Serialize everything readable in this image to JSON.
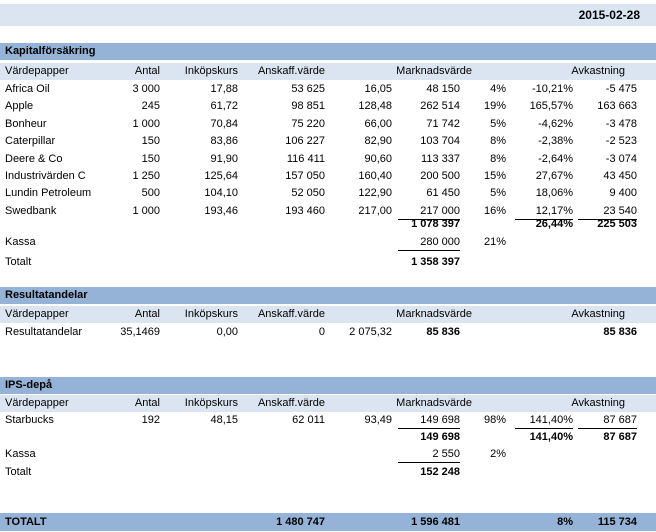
{
  "date": "2015-02-28",
  "kapital": {
    "title": "Kapitalförsäkring",
    "headers": {
      "vardepapper": "Värdepapper",
      "antal": "Antal",
      "inkopskurs": "Inköpskurs",
      "anskaff": "Anskaff.värde",
      "marknadsvarde": "Marknadsvärde",
      "avkastning": "Avkastning"
    },
    "rows": [
      {
        "name": "Africa Oil",
        "antal": "3 000",
        "inkop": "17,88",
        "anskaff": "53 625",
        "kurs": "16,05",
        "mv": "48 150",
        "andel": "4%",
        "avk_pct": "-10,21%",
        "avk_kr": "-5 475"
      },
      {
        "name": "Apple",
        "antal": "245",
        "inkop": "61,72",
        "anskaff": "98 851",
        "kurs": "128,48",
        "mv": "262 514",
        "andel": "19%",
        "avk_pct": "165,57%",
        "avk_kr": "163 663"
      },
      {
        "name": "Bonheur",
        "antal": "1 000",
        "inkop": "70,84",
        "anskaff": "75 220",
        "kurs": "66,00",
        "mv": "71 742",
        "andel": "5%",
        "avk_pct": "-4,62%",
        "avk_kr": "-3 478"
      },
      {
        "name": "Caterpillar",
        "antal": "150",
        "inkop": "83,86",
        "anskaff": "106 227",
        "kurs": "82,90",
        "mv": "103 704",
        "andel": "8%",
        "avk_pct": "-2,38%",
        "avk_kr": "-2 523"
      },
      {
        "name": "Deere & Co",
        "antal": "150",
        "inkop": "91,90",
        "anskaff": "116 411",
        "kurs": "90,60",
        "mv": "113 337",
        "andel": "8%",
        "avk_pct": "-2,64%",
        "avk_kr": "-3 074"
      },
      {
        "name": "Industrivärden C",
        "antal": "1 250",
        "inkop": "125,64",
        "anskaff": "157 050",
        "kurs": "160,40",
        "mv": "200 500",
        "andel": "15%",
        "avk_pct": "27,67%",
        "avk_kr": "43 450"
      },
      {
        "name": "Lundin Petroleum",
        "antal": "500",
        "inkop": "104,10",
        "anskaff": "52 050",
        "kurs": "122,90",
        "mv": "61 450",
        "andel": "5%",
        "avk_pct": "18,06%",
        "avk_kr": "9 400"
      },
      {
        "name": "Swedbank",
        "antal": "1 000",
        "inkop": "193,46",
        "anskaff": "193 460",
        "kurs": "217,00",
        "mv": "217 000",
        "andel": "16%",
        "avk_pct": "12,17%",
        "avk_kr": "23 540"
      }
    ],
    "subtotal_mv": "1 078 397",
    "subtotal_avk_pct": "26,44%",
    "subtotal_avk_kr": "225 503",
    "kassa_label": "Kassa",
    "kassa_mv": "280 000",
    "kassa_andel": "21%",
    "totalt_label": "Totalt",
    "totalt_mv": "1 358 397"
  },
  "resultat": {
    "title": "Resultatandelar",
    "headers": {
      "vardepapper": "Värdepapper",
      "antal": "Antal",
      "inkopskurs": "Inköpskurs",
      "anskaff": "Anskaff.värde",
      "marknadsvarde": "Marknadsvärde",
      "avkastning": "Avkastning"
    },
    "row": {
      "name": "Resultatandelar",
      "antal": "35,1469",
      "inkop": "0,00",
      "anskaff": "0",
      "kurs": "2 075,32",
      "mv": "85 836",
      "avk_kr": "85 836"
    }
  },
  "ips": {
    "title": "IPS-depå",
    "headers": {
      "vardepapper": "Värdepapper",
      "antal": "Antal",
      "inkopskurs": "Inköpskurs",
      "anskaff": "Anskaff.värde",
      "marknadsvarde": "Marknadsvärde",
      "avkastning": "Avkastning"
    },
    "row": {
      "name": "Starbucks",
      "antal": "192",
      "inkop": "48,15",
      "anskaff": "62 011",
      "kurs": "93,49",
      "mv": "149 698",
      "andel": "98%",
      "avk_pct": "141,40%",
      "avk_kr": "87 687"
    },
    "subtotal_mv": "149 698",
    "subtotal_avk_pct": "141,40%",
    "subtotal_avk_kr": "87 687",
    "kassa_label": "Kassa",
    "kassa_mv": "2 550",
    "kassa_andel": "2%",
    "totalt_label": "Totalt",
    "totalt_mv": "152 248"
  },
  "grand_total": {
    "label": "TOTALT",
    "anskaff": "1 480 747",
    "mv": "1 596 481",
    "avk_pct": "8%",
    "avk_kr": "115 734"
  }
}
